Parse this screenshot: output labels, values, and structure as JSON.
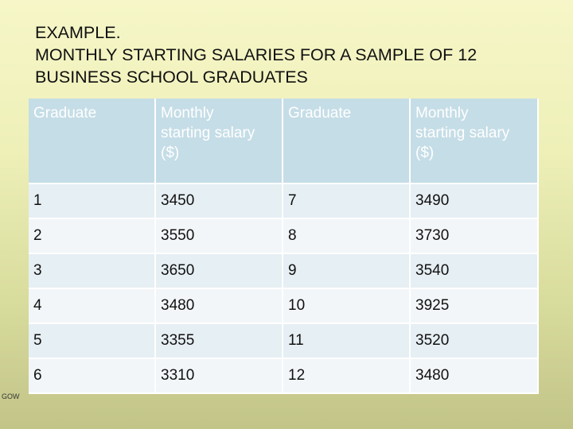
{
  "title": {
    "line1": "EXAMPLE.",
    "line2": "MONTHLY STARTING SALARIES FOR A SAMPLE OF 12",
    "line3": "BUSINESS SCHOOL GRADUATES"
  },
  "table": {
    "headers": [
      {
        "line1": "Graduate",
        "line2": "",
        "line3": ""
      },
      {
        "line1": "Monthly",
        "line2": "starting salary",
        "line3": "($)"
      },
      {
        "line1": "Graduate",
        "line2": "",
        "line3": ""
      },
      {
        "line1": "Monthly",
        "line2": "starting salary",
        "line3": "($)"
      }
    ],
    "rows": [
      [
        "1",
        "3450",
        "7",
        "3490"
      ],
      [
        "2",
        "3550",
        "8",
        "3730"
      ],
      [
        "3",
        "3650",
        "9",
        "3540"
      ],
      [
        "4",
        "3480",
        "10",
        "3925"
      ],
      [
        "5",
        "3355",
        "11",
        "3520"
      ],
      [
        "6",
        "3310",
        "12",
        "3480"
      ]
    ]
  },
  "footer": {
    "text": "GOW"
  },
  "colors": {
    "header_bg": "#c5dde6",
    "row_odd_bg": "#e6eff3",
    "row_even_bg": "#f2f6f8"
  }
}
